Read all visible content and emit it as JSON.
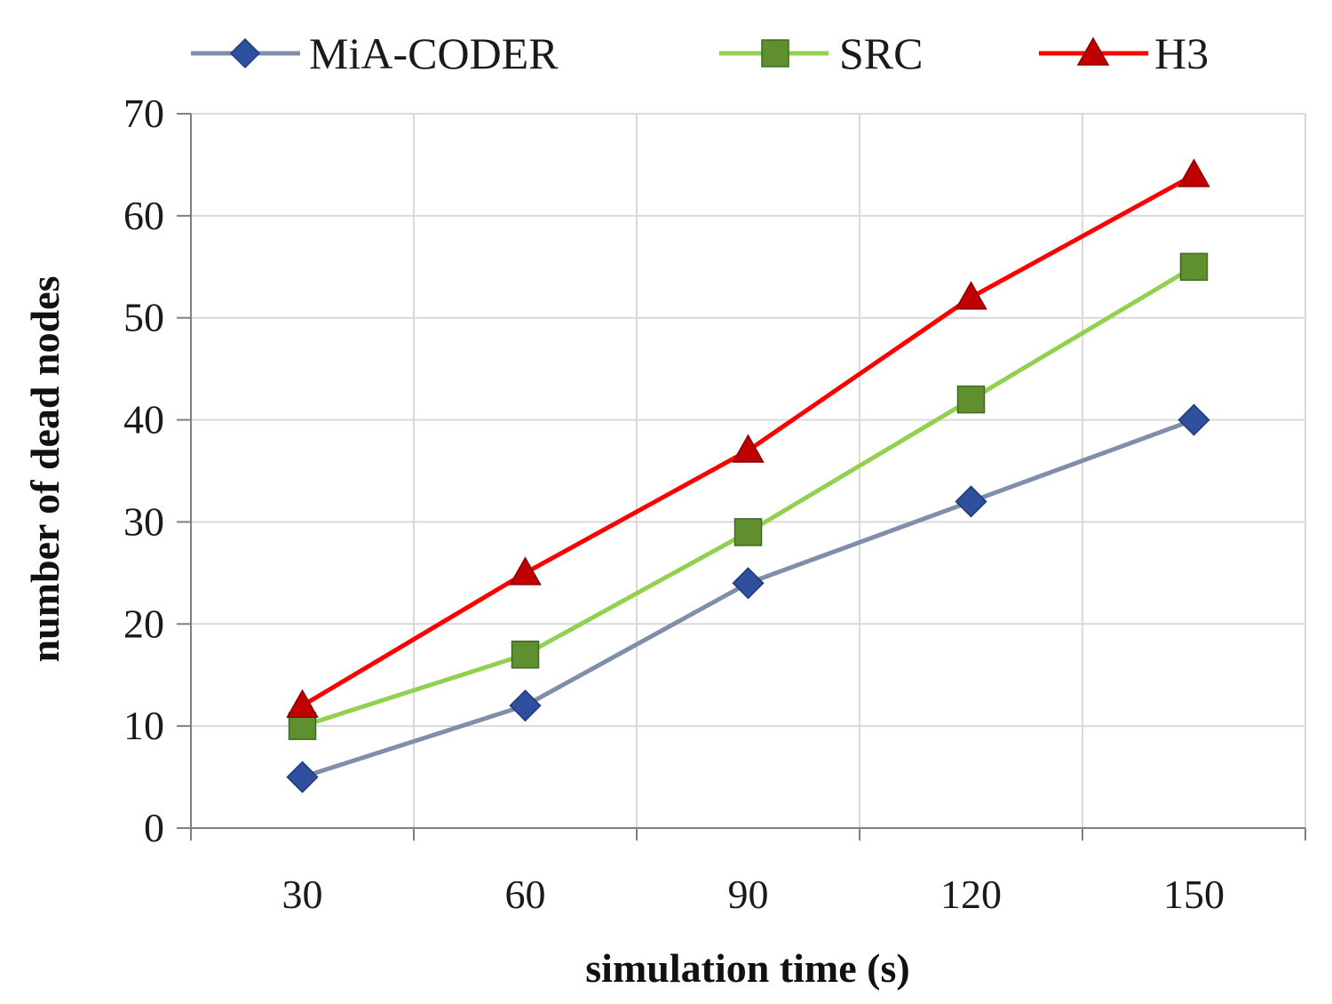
{
  "chart_data": {
    "type": "line",
    "title": "",
    "xlabel": "simulation time (s)",
    "ylabel": "number of dead nodes",
    "categories": [
      "30",
      "60",
      "90",
      "120",
      "150"
    ],
    "ylim": [
      0,
      70
    ],
    "yticks": [
      0,
      10,
      20,
      30,
      40,
      50,
      60,
      70
    ],
    "grid": true,
    "legend_position": "top",
    "series": [
      {
        "name": "MiA-CODER",
        "color": "#7f8fa9",
        "marker": "diamond",
        "marker_color": "#2f4f9f",
        "values": [
          5,
          12,
          24,
          32,
          40
        ]
      },
      {
        "name": "SRC",
        "color": "#92d050",
        "marker": "square",
        "marker_color": "#5f8f2f",
        "values": [
          10,
          17,
          29,
          42,
          55
        ]
      },
      {
        "name": "H3",
        "color": "#ff0000",
        "marker": "triangle",
        "marker_color": "#c00000",
        "values": [
          12,
          25,
          37,
          52,
          64
        ]
      }
    ]
  }
}
